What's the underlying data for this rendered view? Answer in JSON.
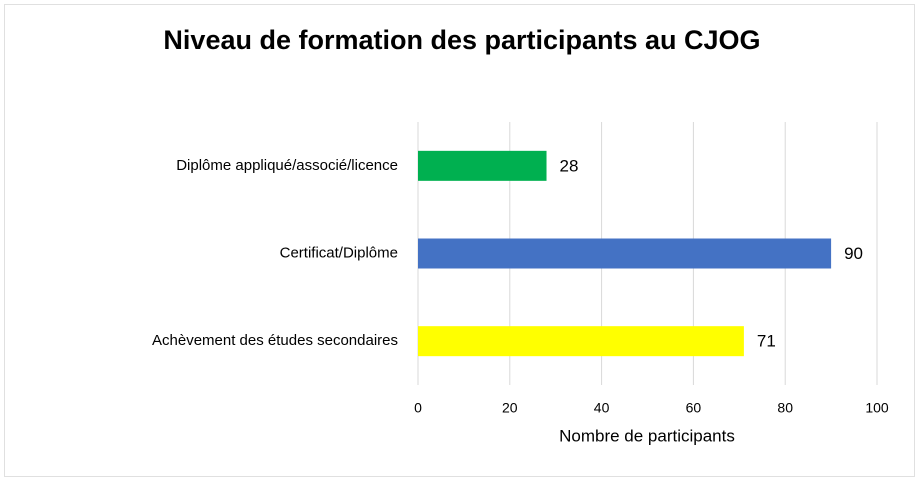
{
  "chart_data": {
    "type": "barh",
    "title": "Niveau de formation des participants au CJOG",
    "categories": [
      "Diplôme appliqué/associé/licence",
      "Certificat/Diplôme",
      "Achèvement des études secondaires"
    ],
    "values": [
      28,
      90,
      71
    ],
    "colors": [
      "#00b050",
      "#4472c4",
      "#ffff00"
    ],
    "xlabel": "Nombre de participants",
    "xlim": [
      0,
      100
    ],
    "xticks": [
      0,
      20,
      40,
      60,
      80,
      100
    ],
    "grid": true
  }
}
